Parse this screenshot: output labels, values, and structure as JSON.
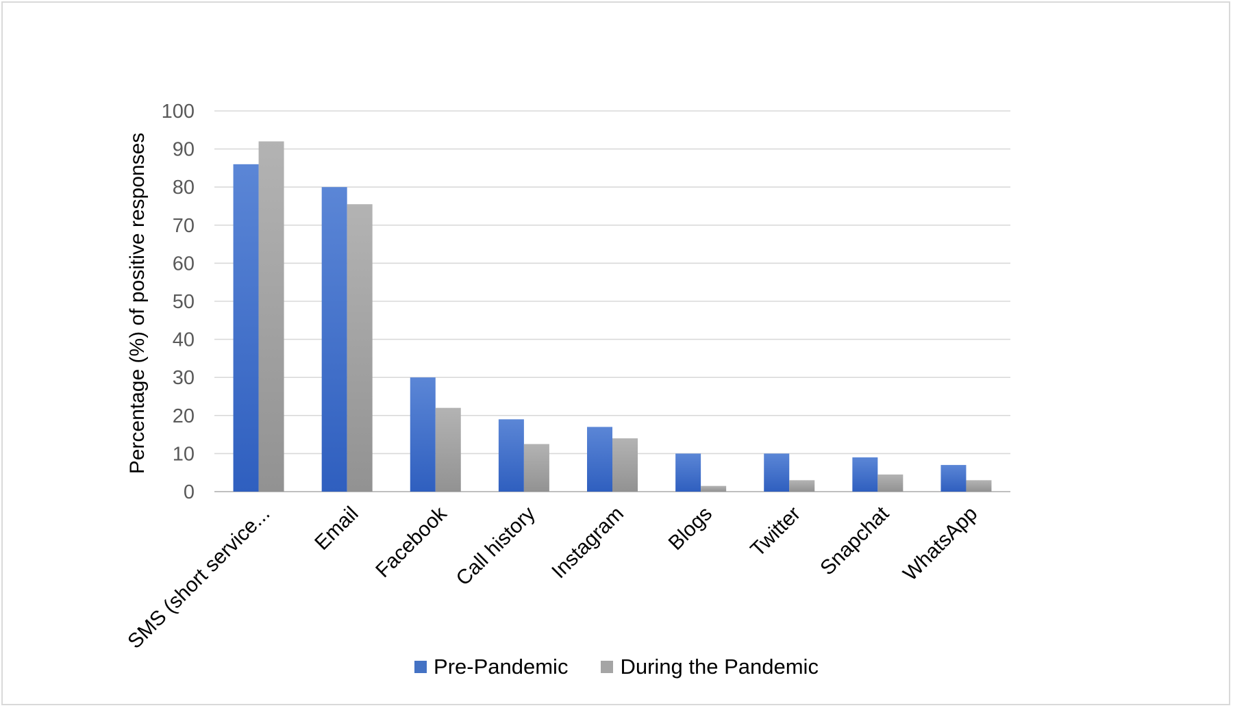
{
  "chart_data": {
    "type": "bar",
    "title": "",
    "xlabel": "",
    "ylabel": "Percentage (%) of positive responses",
    "ylim": [
      0,
      100
    ],
    "yticks": [
      "0",
      "10",
      "20",
      "30",
      "40",
      "50",
      "60",
      "70",
      "80",
      "90",
      "100"
    ],
    "categories": [
      "SMS (short service...",
      "Email",
      "Facebook",
      "Call history",
      "Instagram",
      "Blogs",
      "Twitter",
      "Snapchat",
      "WhatsApp"
    ],
    "series": [
      {
        "name": "Pre-Pandemic",
        "color": "#4472c4",
        "values": [
          86,
          80,
          30,
          19,
          17,
          10,
          10,
          9,
          7
        ]
      },
      {
        "name": "During the Pandemic",
        "color": "#a5a5a5",
        "values": [
          92,
          75.5,
          22,
          12.5,
          14,
          1.5,
          3,
          4.5,
          3
        ]
      }
    ],
    "grid": true,
    "legend_position": "bottom"
  }
}
